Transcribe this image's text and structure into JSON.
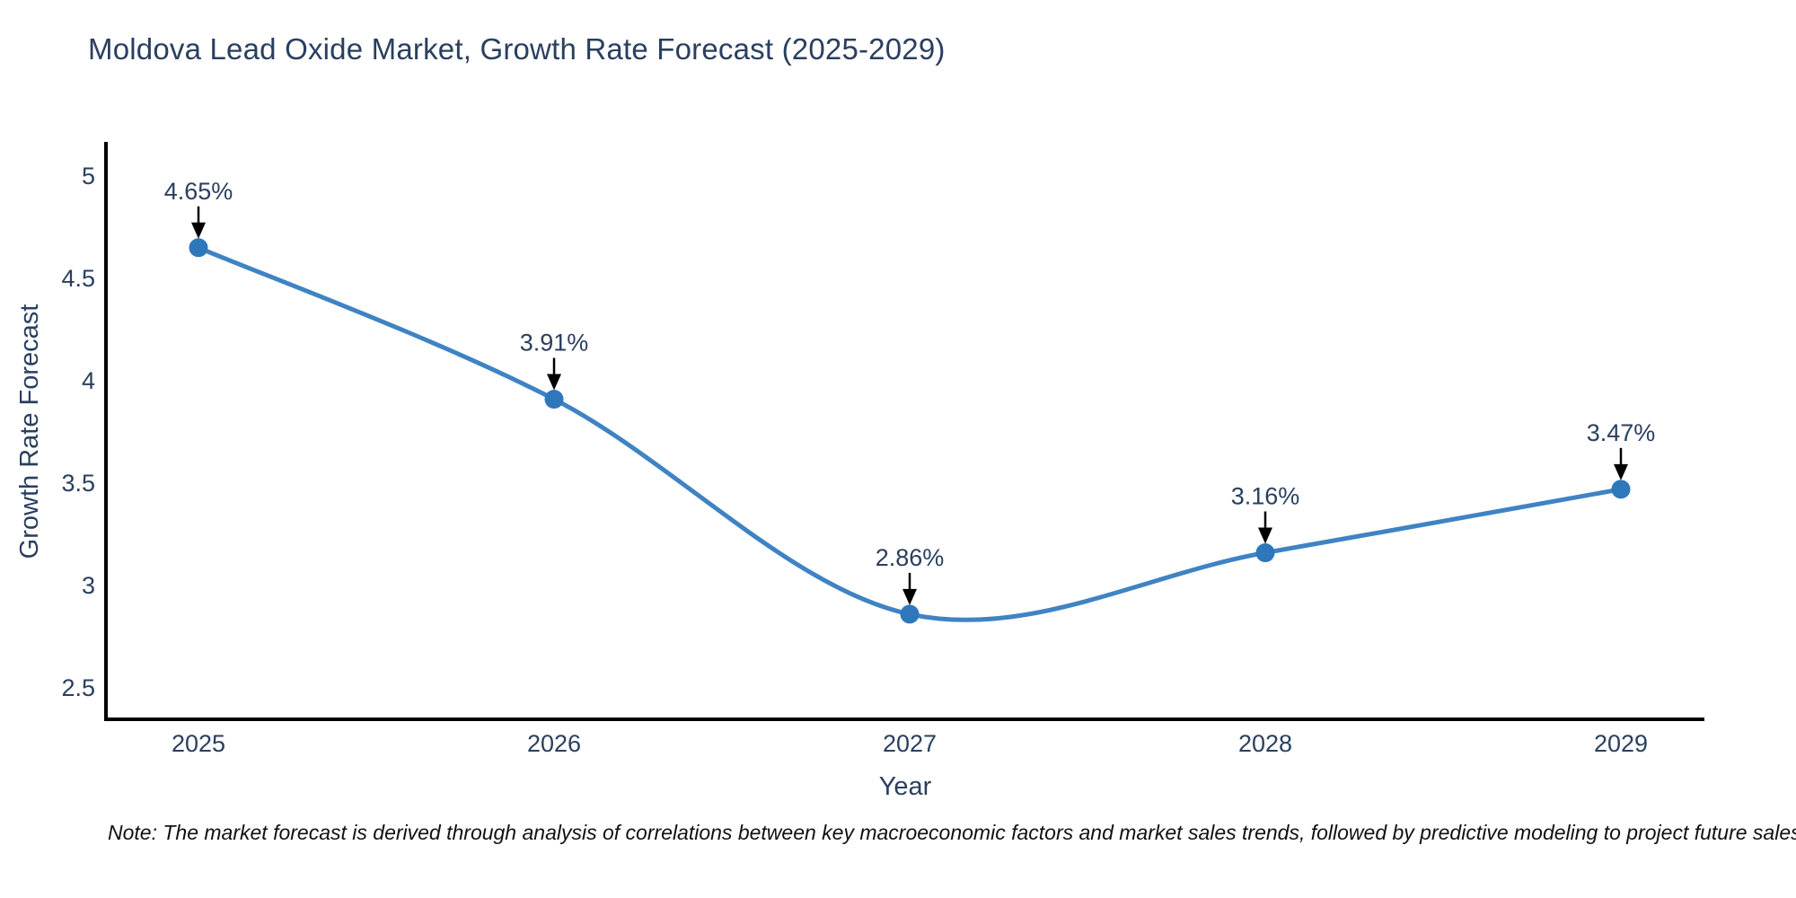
{
  "page": {
    "background": "#ffffff"
  },
  "chart_data": {
    "type": "line",
    "title": "Moldova Lead Oxide Market, Growth Rate Forecast (2025-2029)",
    "xlabel": "Year",
    "ylabel": "Growth Rate Forecast",
    "categories": [
      2025,
      2026,
      2027,
      2028,
      2029
    ],
    "series": [
      {
        "name": "Growth Rate Forecast",
        "values": [
          4.65,
          3.91,
          2.86,
          3.16,
          3.47
        ]
      }
    ],
    "point_labels": [
      "4.65%",
      "3.91%",
      "2.86%",
      "3.16%",
      "3.47%"
    ],
    "y_ticks": [
      2.5,
      3,
      3.5,
      4,
      4.5,
      5
    ],
    "ylim": [
      2.35,
      5.16
    ],
    "grid": false,
    "legend_position": "none",
    "line_shape": "spline",
    "colors": {
      "line": "#3f83c3",
      "marker": "#2e77bb",
      "axis": "#000000",
      "text": "#2a3f5f",
      "annotation_arrow": "#000000",
      "note_text": "#111111"
    }
  },
  "note": {
    "text": "Note: The market forecast is derived through analysis of correlations between key macroeconomic factors and market sales trends, followed by predictive modeling to project future sales"
  }
}
